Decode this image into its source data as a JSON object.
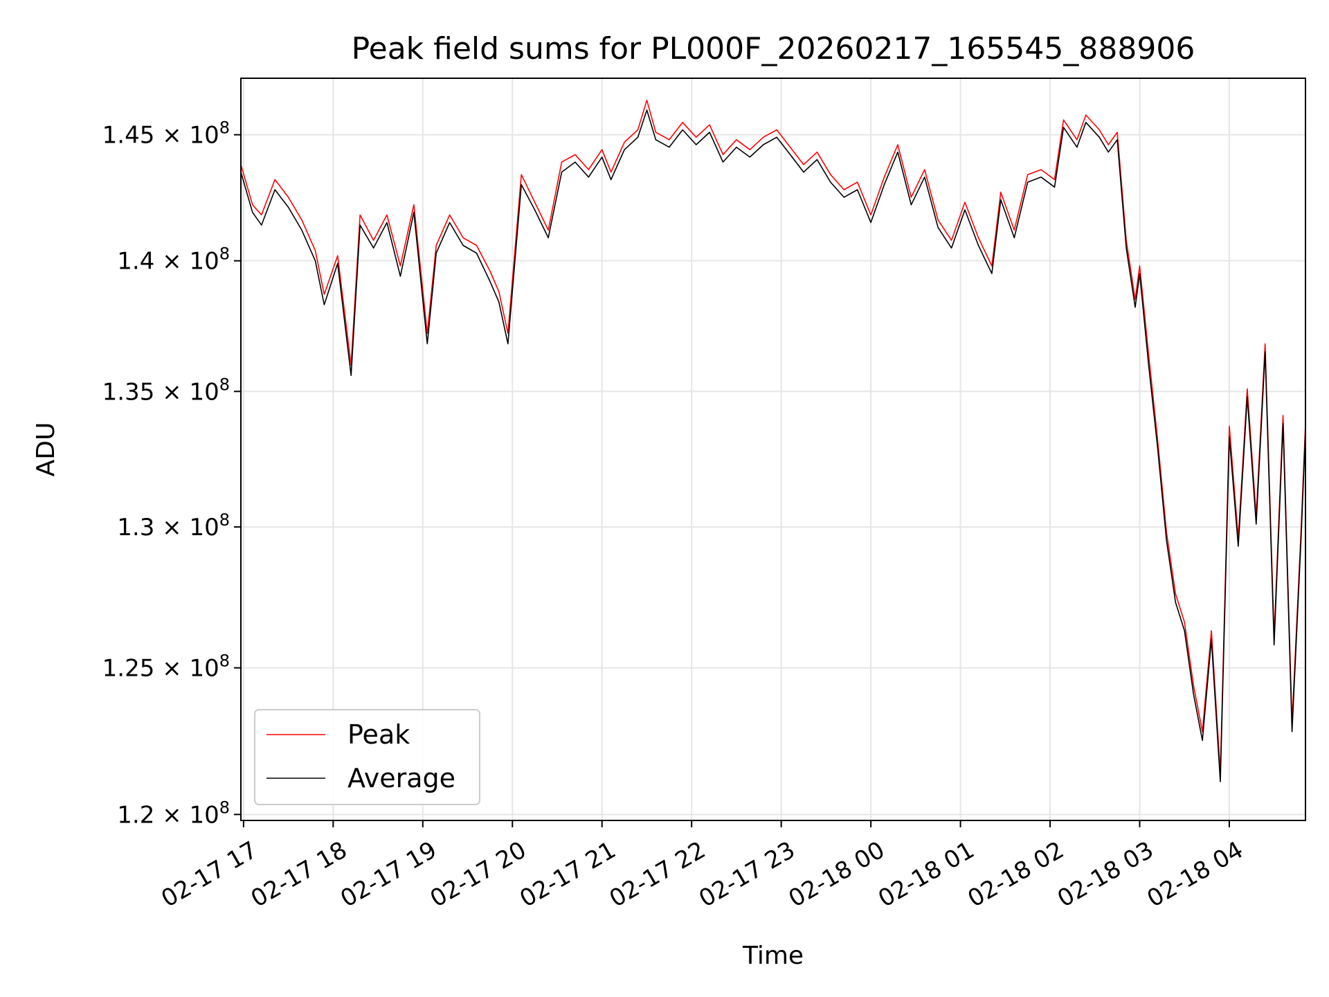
{
  "chart_data": {
    "type": "line",
    "title": "Peak field sums for PL000F_20260217_165545_888906",
    "xlabel": "Time",
    "ylabel": "ADU",
    "yscale": "log",
    "xlim": [
      16.97,
      28.85
    ],
    "ylim": [
      119800000,
      147300000
    ],
    "grid": true,
    "legend_position": "lower-left",
    "x_ticks": [
      {
        "value": 17,
        "label": "02-17 17"
      },
      {
        "value": 18,
        "label": "02-17 18"
      },
      {
        "value": 19,
        "label": "02-17 19"
      },
      {
        "value": 20,
        "label": "02-17 20"
      },
      {
        "value": 21,
        "label": "02-17 21"
      },
      {
        "value": 22,
        "label": "02-17 22"
      },
      {
        "value": 23,
        "label": "02-17 23"
      },
      {
        "value": 24,
        "label": "02-18 00"
      },
      {
        "value": 25,
        "label": "02-18 01"
      },
      {
        "value": 26,
        "label": "02-18 02"
      },
      {
        "value": 27,
        "label": "02-18 03"
      },
      {
        "value": 28,
        "label": "02-18 04"
      }
    ],
    "y_ticks": [
      {
        "value": 120000000,
        "mantissa": "1.2",
        "label": "1.2 × 10^8"
      },
      {
        "value": 125000000,
        "mantissa": "1.25",
        "label": "1.25 × 10^8"
      },
      {
        "value": 130000000,
        "mantissa": "1.3",
        "label": "1.3 × 10^8"
      },
      {
        "value": 135000000,
        "mantissa": "1.35",
        "label": "1.35 × 10^8"
      },
      {
        "value": 140000000,
        "mantissa": "1.4",
        "label": "1.4 × 10^8"
      },
      {
        "value": 145000000,
        "mantissa": "1.45",
        "label": "1.45 × 10^8"
      }
    ],
    "y_tick_multiplier": "× 10",
    "y_tick_exponent": "8",
    "series": [
      {
        "name": "Peak",
        "color": "#ff0000",
        "x": [
          16.97,
          17.1,
          17.2,
          17.35,
          17.5,
          17.65,
          17.8,
          17.9,
          18.05,
          18.2,
          18.3,
          18.45,
          18.6,
          18.75,
          18.9,
          19.05,
          19.15,
          19.3,
          19.45,
          19.6,
          19.75,
          19.85,
          19.95,
          20.1,
          20.25,
          20.4,
          20.55,
          20.7,
          20.85,
          21.0,
          21.1,
          21.25,
          21.4,
          21.5,
          21.6,
          21.75,
          21.9,
          22.05,
          22.2,
          22.35,
          22.5,
          22.65,
          22.8,
          22.95,
          23.1,
          23.25,
          23.4,
          23.55,
          23.7,
          23.85,
          24.0,
          24.15,
          24.3,
          24.45,
          24.6,
          24.75,
          24.9,
          25.05,
          25.2,
          25.35,
          25.45,
          25.6,
          25.75,
          25.9,
          26.05,
          26.15,
          26.3,
          26.4,
          26.55,
          26.65,
          26.75,
          26.85,
          26.95,
          27.0,
          27.1,
          27.2,
          27.3,
          27.4,
          27.5,
          27.6,
          27.7,
          27.8,
          27.9,
          28.0,
          28.1,
          28.2,
          28.3,
          28.4,
          28.5,
          28.6,
          28.7,
          28.8,
          28.85
        ],
        "values": [
          143800000,
          142200000,
          141800000,
          143200000,
          142500000,
          141600000,
          140400000,
          138700000,
          140200000,
          136000000,
          141800000,
          140800000,
          141800000,
          139800000,
          142200000,
          137200000,
          140600000,
          141800000,
          140900000,
          140600000,
          139600000,
          138800000,
          137200000,
          143400000,
          142300000,
          141200000,
          143900000,
          144200000,
          143600000,
          144400000,
          143500000,
          144700000,
          145200000,
          146400000,
          145100000,
          144800000,
          145500000,
          144900000,
          145400000,
          144200000,
          144800000,
          144400000,
          144900000,
          145200000,
          144500000,
          143800000,
          144300000,
          143400000,
          142800000,
          143100000,
          141800000,
          143300000,
          144600000,
          142500000,
          143600000,
          141600000,
          140800000,
          142300000,
          140900000,
          139800000,
          142700000,
          141200000,
          143400000,
          143600000,
          143200000,
          145600000,
          144800000,
          145800000,
          145200000,
          144600000,
          145100000,
          140800000,
          138500000,
          139800000,
          136400000,
          133200000,
          129800000,
          127600000,
          126600000,
          124400000,
          122800000,
          126300000,
          121400000,
          133700000,
          129600000,
          135100000,
          130400000,
          136800000,
          126100000,
          134100000,
          123100000,
          129800000,
          133800000
        ]
      },
      {
        "name": "Average",
        "color": "#000000",
        "x": [
          16.97,
          17.1,
          17.2,
          17.35,
          17.5,
          17.65,
          17.8,
          17.9,
          18.05,
          18.2,
          18.3,
          18.45,
          18.6,
          18.75,
          18.9,
          19.05,
          19.15,
          19.3,
          19.45,
          19.6,
          19.75,
          19.85,
          19.95,
          20.1,
          20.25,
          20.4,
          20.55,
          20.7,
          20.85,
          21.0,
          21.1,
          21.25,
          21.4,
          21.5,
          21.6,
          21.75,
          21.9,
          22.05,
          22.2,
          22.35,
          22.5,
          22.65,
          22.8,
          22.95,
          23.1,
          23.25,
          23.4,
          23.55,
          23.7,
          23.85,
          24.0,
          24.15,
          24.3,
          24.45,
          24.6,
          24.75,
          24.9,
          25.05,
          25.2,
          25.35,
          25.45,
          25.6,
          25.75,
          25.9,
          26.05,
          26.15,
          26.3,
          26.4,
          26.55,
          26.65,
          26.75,
          26.85,
          26.95,
          27.0,
          27.1,
          27.2,
          27.3,
          27.4,
          27.5,
          27.6,
          27.7,
          27.8,
          27.9,
          28.0,
          28.1,
          28.2,
          28.3,
          28.4,
          28.5,
          28.6,
          28.7,
          28.8,
          28.85
        ],
        "values": [
          143500000,
          141900000,
          141400000,
          142800000,
          142100000,
          141200000,
          140000000,
          138300000,
          139900000,
          135600000,
          141400000,
          140500000,
          141500000,
          139400000,
          141900000,
          136800000,
          140300000,
          141500000,
          140600000,
          140300000,
          139200000,
          138400000,
          136800000,
          143000000,
          142000000,
          140900000,
          143500000,
          143900000,
          143300000,
          144100000,
          143200000,
          144400000,
          144900000,
          146000000,
          144800000,
          144500000,
          145200000,
          144600000,
          145100000,
          143900000,
          144500000,
          144100000,
          144600000,
          144900000,
          144200000,
          143500000,
          144000000,
          143100000,
          142500000,
          142800000,
          141500000,
          143000000,
          144300000,
          142200000,
          143300000,
          141300000,
          140500000,
          142000000,
          140600000,
          139500000,
          142400000,
          140900000,
          143100000,
          143300000,
          142900000,
          145300000,
          144500000,
          145500000,
          144900000,
          144300000,
          144800000,
          140500000,
          138200000,
          139500000,
          136000000,
          132900000,
          129500000,
          127300000,
          126300000,
          124100000,
          122500000,
          126000000,
          121100000,
          133300000,
          129300000,
          134800000,
          130100000,
          136500000,
          125800000,
          133800000,
          122800000,
          129500000,
          133500000
        ]
      }
    ]
  }
}
